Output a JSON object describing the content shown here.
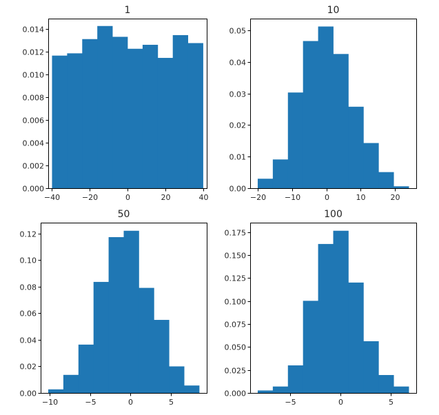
{
  "figure": {
    "background": "#ffffff",
    "bar_color": "#1f77b4"
  },
  "chart_data": [
    {
      "type": "bar",
      "title": "1",
      "xlabel": "",
      "ylabel": "",
      "bin_edges": [
        -40,
        -32,
        -24,
        -16,
        -8,
        0,
        8,
        16,
        24,
        32,
        40
      ],
      "values": [
        0.01165,
        0.01185,
        0.0131,
        0.01425,
        0.0133,
        0.01225,
        0.0126,
        0.01145,
        0.01345,
        0.01275
      ],
      "xlim": [
        -42,
        42
      ],
      "ylim": [
        0,
        0.0149
      ],
      "xticks": [
        -40,
        -20,
        0,
        20,
        40
      ],
      "xtick_labels": [
        "−40",
        "−20",
        "0",
        "20",
        "40"
      ],
      "yticks": [
        0,
        0.002,
        0.004,
        0.006,
        0.008,
        0.01,
        0.012,
        0.014
      ],
      "ytick_labels": [
        "0.000",
        "0.002",
        "0.004",
        "0.006",
        "0.008",
        "0.010",
        "0.012",
        "0.014"
      ],
      "grid": false
    },
    {
      "type": "bar",
      "title": "10",
      "xlabel": "",
      "ylabel": "",
      "bin_edges": [
        -20,
        -15.6,
        -11.2,
        -6.8,
        -2.4,
        2.0,
        6.4,
        10.8,
        15.2,
        19.6,
        24.0
      ],
      "values": [
        0.003,
        0.0091,
        0.0303,
        0.0466,
        0.0512,
        0.0425,
        0.0258,
        0.0143,
        0.0051,
        0.0006
      ],
      "xlim": [
        -22.2,
        26.2
      ],
      "ylim": [
        0,
        0.0537
      ],
      "xticks": [
        -20,
        -10,
        0,
        10,
        20
      ],
      "xtick_labels": [
        "−20",
        "−10",
        "0",
        "10",
        "20"
      ],
      "yticks": [
        0,
        0.01,
        0.02,
        0.03,
        0.04,
        0.05
      ],
      "ytick_labels": [
        "0.00",
        "0.01",
        "0.02",
        "0.03",
        "0.04",
        "0.05"
      ],
      "grid": false
    },
    {
      "type": "bar",
      "title": "50",
      "xlabel": "",
      "ylabel": "",
      "bin_edges": [
        -10.2,
        -8.33,
        -6.46,
        -4.59,
        -2.72,
        -0.85,
        1.02,
        2.89,
        4.76,
        6.63,
        8.5
      ],
      "values": [
        0.0027,
        0.0136,
        0.0364,
        0.0836,
        0.1173,
        0.1221,
        0.0791,
        0.055,
        0.02,
        0.0056
      ],
      "xlim": [
        -11.14,
        9.44
      ],
      "ylim": [
        0,
        0.1282
      ],
      "xticks": [
        -10,
        -5,
        0,
        5
      ],
      "xtick_labels": [
        "−10",
        "−5",
        "0",
        "5"
      ],
      "yticks": [
        0,
        0.02,
        0.04,
        0.06,
        0.08,
        0.1,
        0.12
      ],
      "ytick_labels": [
        "0.00",
        "0.02",
        "0.04",
        "0.06",
        "0.08",
        "0.10",
        "0.12"
      ],
      "grid": false
    },
    {
      "type": "bar",
      "title": "100",
      "xlabel": "",
      "ylabel": "",
      "bin_edges": [
        -8.2,
        -6.7,
        -5.2,
        -3.7,
        -2.2,
        -0.7,
        0.8,
        2.3,
        3.8,
        5.3,
        6.8
      ],
      "values": [
        0.0027,
        0.007,
        0.03,
        0.1003,
        0.1622,
        0.1766,
        0.1202,
        0.0563,
        0.0195,
        0.007
      ],
      "xlim": [
        -8.95,
        7.55
      ],
      "ylim": [
        0,
        0.1854
      ],
      "xticks": [
        -5,
        0,
        5
      ],
      "xtick_labels": [
        "−5",
        "0",
        "5"
      ],
      "yticks": [
        0,
        0.025,
        0.05,
        0.075,
        0.1,
        0.125,
        0.15,
        0.175
      ],
      "ytick_labels": [
        "0.000",
        "0.025",
        "0.050",
        "0.075",
        "0.100",
        "0.125",
        "0.150",
        "0.175"
      ],
      "grid": false
    }
  ]
}
